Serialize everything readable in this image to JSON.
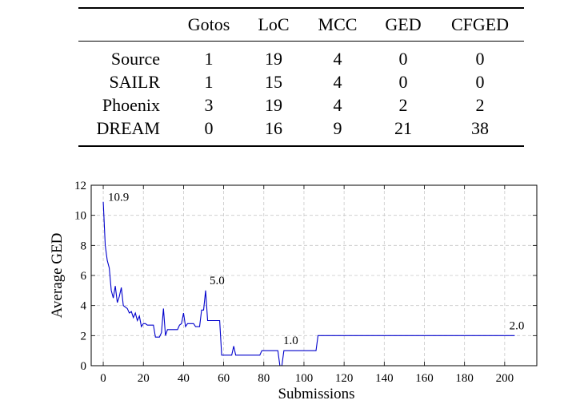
{
  "table": {
    "headers": [
      "",
      "Gotos",
      "LoC",
      "MCC",
      "GED",
      "CFGED"
    ],
    "rows": [
      {
        "label": "Source",
        "values": [
          "1",
          "19",
          "4",
          "0",
          "0"
        ]
      },
      {
        "label": "SAILR",
        "values": [
          "1",
          "15",
          "4",
          "0",
          "0"
        ]
      },
      {
        "label": "Phoenix",
        "values": [
          "3",
          "19",
          "4",
          "2",
          "2"
        ]
      },
      {
        "label": "DREAM",
        "values": [
          "0",
          "16",
          "9",
          "21",
          "38"
        ]
      }
    ]
  },
  "chart_data": {
    "type": "line",
    "xlabel": "Submissions",
    "ylabel": "Average GED",
    "xlim": [
      -6,
      216
    ],
    "ylim": [
      0,
      12
    ],
    "xticks": [
      0,
      20,
      40,
      60,
      80,
      100,
      120,
      140,
      160,
      180,
      200
    ],
    "yticks": [
      0,
      2,
      4,
      6,
      8,
      10,
      12
    ],
    "grid": true,
    "line_color": "#0000cc",
    "series": [
      {
        "x": [
          0,
          1,
          2,
          3,
          4,
          5,
          6,
          7,
          8,
          9,
          10,
          11,
          12,
          13,
          14,
          15,
          16,
          17,
          18,
          19,
          20,
          21,
          22,
          23,
          24,
          25,
          26,
          27,
          28,
          29,
          30,
          31,
          32,
          33,
          34,
          35,
          36,
          37,
          38,
          39,
          40,
          41,
          42,
          43,
          44,
          45,
          46,
          47,
          48,
          49,
          50,
          51,
          52,
          53,
          54,
          55,
          56,
          57,
          58,
          59,
          60,
          61,
          62,
          63,
          64,
          65,
          66,
          67,
          68,
          69,
          70,
          71,
          72,
          73,
          74,
          75,
          76,
          77,
          78,
          79,
          80,
          81,
          82,
          83,
          84,
          85,
          86,
          87,
          88,
          89,
          90,
          91,
          92,
          93,
          94,
          95,
          96,
          97,
          98,
          99,
          100,
          101,
          102,
          103,
          104,
          105,
          106,
          107,
          108,
          205
        ],
        "y": [
          10.9,
          8.0,
          7.0,
          6.5,
          5.0,
          4.5,
          5.3,
          4.2,
          4.6,
          5.2,
          4.0,
          3.9,
          3.8,
          3.5,
          3.6,
          3.2,
          3.5,
          3.0,
          3.3,
          2.6,
          2.8,
          2.8,
          2.7,
          2.7,
          2.7,
          2.7,
          1.9,
          1.9,
          1.9,
          2.2,
          3.8,
          2.0,
          2.4,
          2.4,
          2.4,
          2.4,
          2.4,
          2.4,
          2.7,
          2.8,
          3.5,
          2.6,
          2.8,
          2.8,
          2.8,
          2.8,
          2.6,
          2.6,
          2.6,
          3.7,
          3.7,
          5.0,
          3.0,
          3.0,
          3.0,
          3.0,
          3.0,
          3.0,
          3.0,
          0.7,
          0.7,
          0.7,
          0.7,
          0.7,
          0.7,
          1.3,
          0.7,
          0.7,
          0.7,
          0.7,
          0.7,
          0.7,
          0.7,
          0.7,
          0.7,
          0.7,
          0.7,
          0.7,
          0.7,
          1.0,
          1.0,
          1.0,
          1.0,
          1.0,
          1.0,
          1.0,
          1.0,
          1.0,
          0.0,
          0.0,
          1.0,
          1.0,
          1.0,
          1.0,
          1.0,
          1.0,
          1.0,
          1.0,
          1.0,
          1.0,
          1.0,
          1.0,
          1.0,
          1.0,
          1.0,
          1.0,
          1.0,
          2.0,
          2.0,
          2.0
        ]
      }
    ],
    "annotations": [
      {
        "x": 0,
        "y": 10.9,
        "text": "10.9"
      },
      {
        "x": 51,
        "y": 5.0,
        "text": "5.0"
      },
      {
        "x": 97,
        "y": 1.0,
        "text": "1.0"
      },
      {
        "x": 205,
        "y": 2.0,
        "text": "2.0"
      }
    ]
  }
}
